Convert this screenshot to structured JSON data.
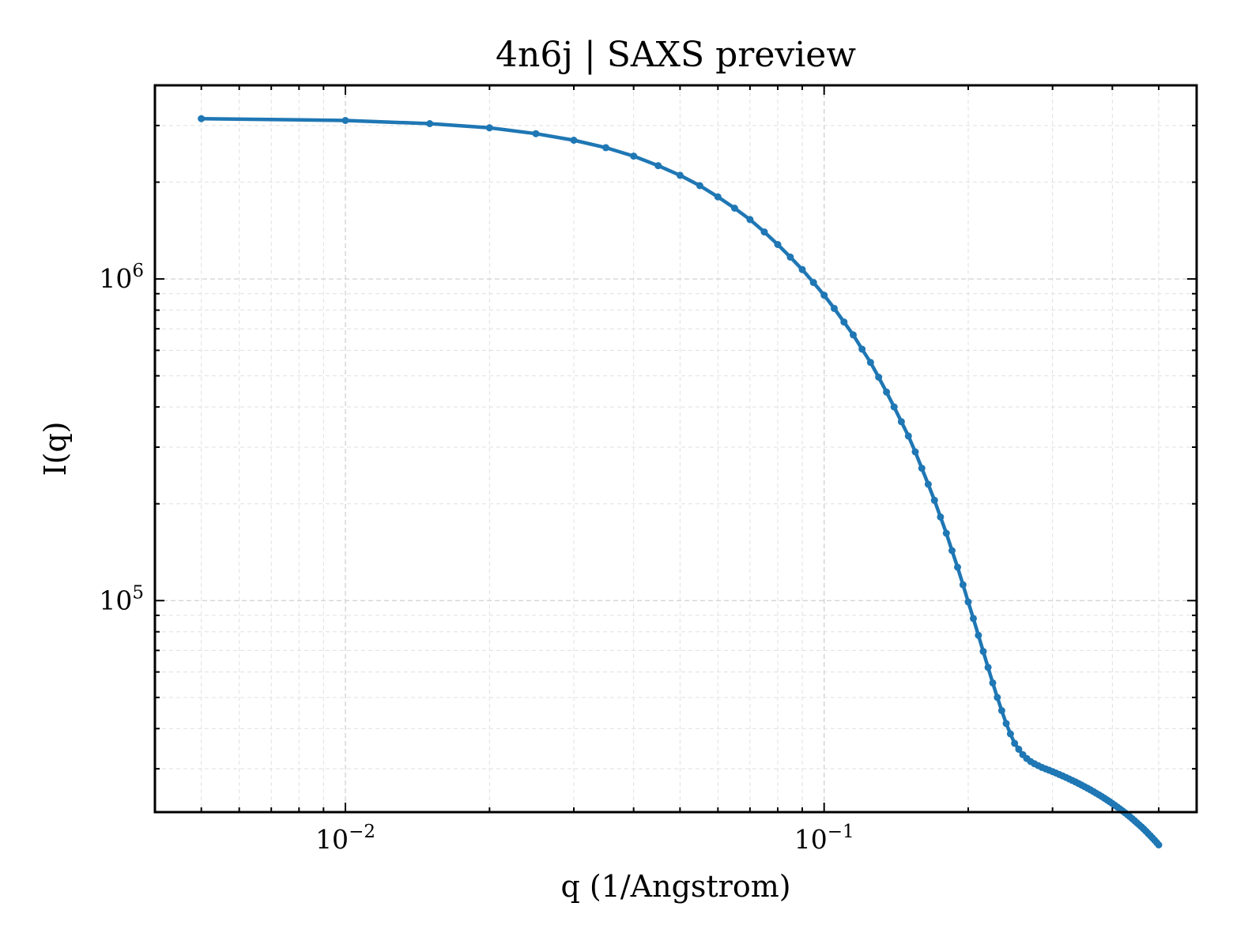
{
  "chart_data": {
    "type": "line",
    "title": "4n6j | SAXS preview",
    "xlabel": "q (1/Angstrom)",
    "ylabel": "I(q)",
    "xscale": "log",
    "yscale": "log",
    "xlim": [
      0.004,
      0.6
    ],
    "ylim": [
      22000,
      4000000
    ],
    "grid": true,
    "legend": "none",
    "x_ticks": [
      {
        "base": "10",
        "exp": "−2",
        "value": 0.01
      },
      {
        "base": "10",
        "exp": "−1",
        "value": 0.1
      }
    ],
    "y_ticks": [
      {
        "base": "10",
        "exp": "5",
        "value": 100000
      },
      {
        "base": "10",
        "exp": "6",
        "value": 1000000
      }
    ],
    "colors": {
      "line": "#1f77b4",
      "marker": "#1f77b4"
    },
    "series": [
      {
        "x": [
          0.005,
          0.01,
          0.015,
          0.02,
          0.025,
          0.03,
          0.035,
          0.04,
          0.045,
          0.05,
          0.055,
          0.06,
          0.065,
          0.07,
          0.075,
          0.08,
          0.085,
          0.09,
          0.095,
          0.1,
          0.105,
          0.11,
          0.115,
          0.12,
          0.125,
          0.13,
          0.135,
          0.14,
          0.145,
          0.15,
          0.155,
          0.16,
          0.165,
          0.17,
          0.175,
          0.18,
          0.185,
          0.19,
          0.195,
          0.2,
          0.205,
          0.21,
          0.215,
          0.22,
          0.225,
          0.23,
          0.235,
          0.24,
          0.245,
          0.25,
          0.255,
          0.26,
          0.265,
          0.27,
          0.275,
          0.28,
          0.285,
          0.29,
          0.295,
          0.3,
          0.305,
          0.31,
          0.315,
          0.32,
          0.325,
          0.33,
          0.335,
          0.34,
          0.345,
          0.35,
          0.355,
          0.36,
          0.365,
          0.37,
          0.375,
          0.38,
          0.385,
          0.39,
          0.395,
          0.4,
          0.405,
          0.41,
          0.415,
          0.42,
          0.425,
          0.43,
          0.435,
          0.44,
          0.445,
          0.45,
          0.455,
          0.46,
          0.465,
          0.47,
          0.475,
          0.48,
          0.485,
          0.49,
          0.495,
          0.5
        ],
        "y": [
          3150000,
          3110000,
          3040000,
          2950000,
          2830000,
          2700000,
          2560000,
          2410000,
          2250000,
          2100000,
          1950000,
          1800000,
          1660000,
          1530000,
          1400000,
          1280000,
          1170000,
          1070000,
          975000,
          890000,
          810000,
          735000,
          670000,
          605000,
          550000,
          495000,
          445000,
          400000,
          360000,
          325000,
          290000,
          258000,
          230000,
          205000,
          182000,
          162000,
          143000,
          127000,
          112000,
          99000,
          88000,
          78000,
          69500,
          62000,
          55500,
          50000,
          45500,
          41500,
          38500,
          36000,
          34500,
          33200,
          32300,
          31600,
          31100,
          30700,
          30300,
          30000,
          29700,
          29400,
          29100,
          28800,
          28500,
          28200,
          27900,
          27600,
          27300,
          27000,
          26700,
          26400,
          26100,
          25800,
          25500,
          25200,
          24900,
          24600,
          24300,
          24000,
          23700,
          23400,
          23100,
          22800,
          22500,
          22200,
          21900,
          21600,
          21300,
          21000,
          20700,
          20400,
          20100,
          19800,
          19500,
          19200,
          18900,
          18600,
          18300,
          18000,
          17700,
          17400
        ]
      }
    ]
  }
}
